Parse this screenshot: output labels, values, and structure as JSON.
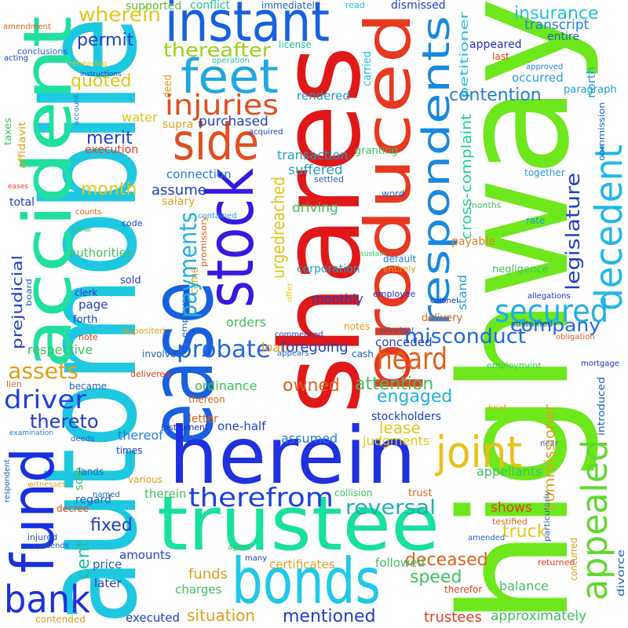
{
  "words": [
    "highway",
    "automobile",
    "shares",
    "produced",
    "accident",
    "stock",
    "ease",
    "herein",
    "trustee",
    "bonds",
    "instant",
    "feet",
    "side",
    "injuries",
    "thereafter",
    "fund",
    "bank",
    "respondents",
    "decedent",
    "joint",
    "appealed",
    "secured",
    "heard",
    "therefrom",
    "probate",
    "driver",
    "assets",
    "reversal",
    "misconduct",
    "company",
    "wherein",
    "supported",
    "conflict",
    "immediately",
    "read",
    "dismissed",
    "petitioner",
    "insurance",
    "transcript",
    "entire",
    "appeared",
    "last",
    "approved",
    "north",
    "occurred",
    "paragraph",
    "contention",
    "commission",
    "together",
    "legislature",
    "cross-complaint",
    "months",
    "word",
    "granting",
    "settled",
    "rate",
    "payable",
    "default",
    "entirely",
    "negligence",
    "stand",
    "allegations",
    "employee",
    "colonel",
    "delivery",
    "sustained",
    "obligation",
    "mortgage",
    "employment",
    "cash",
    "principal",
    "conceded",
    "engaged",
    "attention",
    "owned",
    "ordinance",
    "stockholders",
    "brief",
    "introduced",
    "lease",
    "judgments",
    "assumed",
    "one-half",
    "thereto",
    "thereof",
    "letter",
    "thereon",
    "instrument",
    "became",
    "lien",
    "involved",
    "delivered",
    "deposited",
    "note",
    "notes",
    "appears",
    "commenced",
    "loan",
    "foregoing",
    "orders",
    "monthly",
    "corporation",
    "collision",
    "trust",
    "shows",
    "testified",
    "particularly",
    "near",
    "truck",
    "commissioner",
    "appellants",
    "speed",
    "deceased",
    "amended",
    "returned",
    "concurred",
    "divorce",
    "balance",
    "approximately",
    "therefor",
    "trustees",
    "mentioned",
    "followed",
    "certificates",
    "many",
    "agent",
    "situation",
    "contended",
    "executed",
    "charges",
    "funds",
    "amounts",
    "later",
    "price",
    "cent",
    "fixed",
    "contends",
    "injured",
    "decree",
    "regard",
    "named",
    "therein",
    "various",
    "witnesses",
    "respondent",
    "lands",
    "sole",
    "times",
    "deeds",
    "examination",
    "prejudicial",
    "respective",
    "forth",
    "page",
    "clerk",
    "sold",
    "authorities",
    "canal",
    "code",
    "counts",
    "total",
    "salary",
    "contained",
    "driving",
    "suffered",
    "transaction",
    "acquired",
    "purchased",
    "supra",
    "water",
    "merit",
    "execution",
    "quoted",
    "permit",
    "deed",
    "operation",
    "rehearing",
    "instructions",
    "account",
    "conclusions",
    "amendment",
    "acting",
    "affidavit",
    "taxes",
    "eases",
    "connection",
    "assume",
    "month",
    "rendered",
    "license",
    "carried",
    "came",
    "promissory",
    "employer",
    "payments",
    "urged",
    "reached",
    "sustain",
    "offer",
    "board"
  ]
}
